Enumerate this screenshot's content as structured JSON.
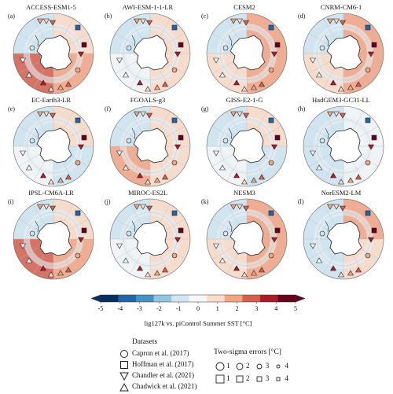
{
  "panels": [
    {
      "letter": "(a)",
      "model": "ACCESS-ESM1-5",
      "variant": "warmAtl"
    },
    {
      "letter": "(b)",
      "model": "AWI-ESM-1-1-LR",
      "variant": "mild"
    },
    {
      "letter": "(c)",
      "model": "CESM2",
      "variant": "warmRing"
    },
    {
      "letter": "(d)",
      "model": "CNRM-CM6-1",
      "variant": "warmRing"
    },
    {
      "letter": "(e)",
      "model": "EC-Earth3-LR",
      "variant": "cool"
    },
    {
      "letter": "(f)",
      "model": "FGOALS-g3",
      "variant": "warmPac"
    },
    {
      "letter": "(g)",
      "model": "GISS-E2-1-G",
      "variant": "cool"
    },
    {
      "letter": "(h)",
      "model": "HadGEM3-GC31-LL",
      "variant": "neutral"
    },
    {
      "letter": "(i)",
      "model": "IPSL-CM6A-LR",
      "variant": "warmAtl"
    },
    {
      "letter": "(j)",
      "model": "MIROC-ES2L",
      "variant": "mild"
    },
    {
      "letter": "(k)",
      "model": "NESM3",
      "variant": "warmRing"
    },
    {
      "letter": "(l)",
      "model": "NorESM2-LM",
      "variant": "mixed"
    }
  ],
  "colorbar": {
    "ticks": [
      "-5",
      "-4",
      "-3",
      "-2",
      "-1",
      "0",
      "1",
      "2",
      "3",
      "4",
      "5"
    ],
    "min": -5,
    "max": 5,
    "label": "lig127k vs. piControl Summer SST [°C]",
    "colors": [
      "#053061",
      "#2166ac",
      "#4393c3",
      "#92c5de",
      "#d1e5f0",
      "#f7f7f7",
      "#fddbc7",
      "#f4a582",
      "#d6604d",
      "#b2182b",
      "#67001f"
    ]
  },
  "legend": {
    "title": "Datasets",
    "entries": [
      {
        "shape": "circle",
        "label": "Capron et al. (2017)"
      },
      {
        "shape": "square",
        "label": "Hoffman et al. (2017)"
      },
      {
        "shape": "triangle-down",
        "label": "Chandler et al. (2021)"
      },
      {
        "shape": "triangle-up",
        "label": "Chadwick et al. (2021)"
      }
    ]
  },
  "sigma": {
    "title": "Two-sigma errors [°C]",
    "values": [
      "1",
      "2",
      "3",
      "4"
    ]
  }
}
